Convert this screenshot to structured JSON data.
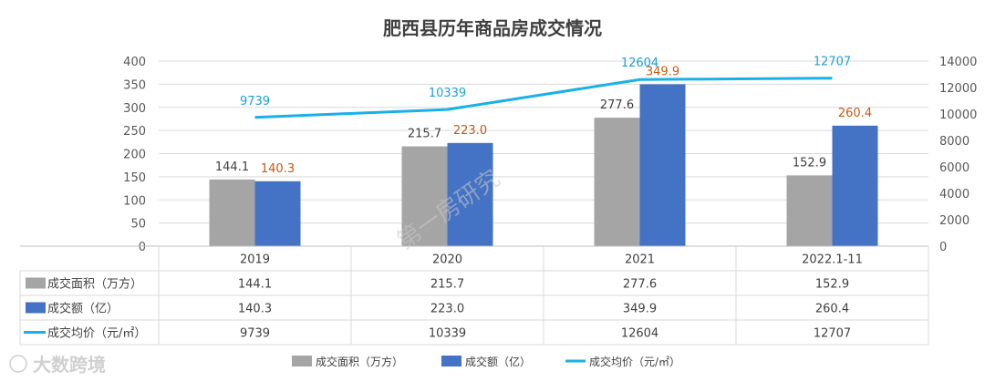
{
  "chart_data": {
    "type": "bar",
    "title": "肥西县历年商品房成交情况",
    "categories": [
      "2019",
      "2020",
      "2021",
      "2022.1-11"
    ],
    "series": [
      {
        "name": "成交面积（万方）",
        "kind": "bar",
        "axis": "left",
        "color": "#a5a5a5",
        "label_color": "#404040",
        "values": [
          144.1,
          215.7,
          277.6,
          152.9
        ],
        "labels": [
          "144.1",
          "215.7",
          "277.6",
          "152.9"
        ]
      },
      {
        "name": "成交额（亿）",
        "kind": "bar",
        "axis": "left",
        "color": "#4472c4",
        "label_color": "#c55a11",
        "values": [
          140.3,
          223.0,
          349.9,
          260.4
        ],
        "labels": [
          "140.3",
          "223.0",
          "349.9",
          "260.4"
        ]
      },
      {
        "name": "成交均价（元/㎡）",
        "kind": "line",
        "axis": "right",
        "color": "#1ab0e8",
        "label_color": "#1a9fd9",
        "values": [
          9739,
          10339,
          12604,
          12707
        ],
        "labels": [
          "9739",
          "10339",
          "12604",
          "12707"
        ]
      }
    ],
    "y_left": {
      "range": [
        0,
        400
      ],
      "ticks": [
        "0",
        "50",
        "100",
        "150",
        "200",
        "250",
        "300",
        "350",
        "400"
      ]
    },
    "y_right": {
      "range": [
        0,
        14000
      ],
      "ticks": [
        "0",
        "2000",
        "4000",
        "6000",
        "8000",
        "10000",
        "12000",
        "14000"
      ]
    },
    "grid": true,
    "data_table": true,
    "legend_position": "bottom"
  },
  "watermark": {
    "center_text": "第一房研究",
    "corner_text": "大数跨境"
  }
}
